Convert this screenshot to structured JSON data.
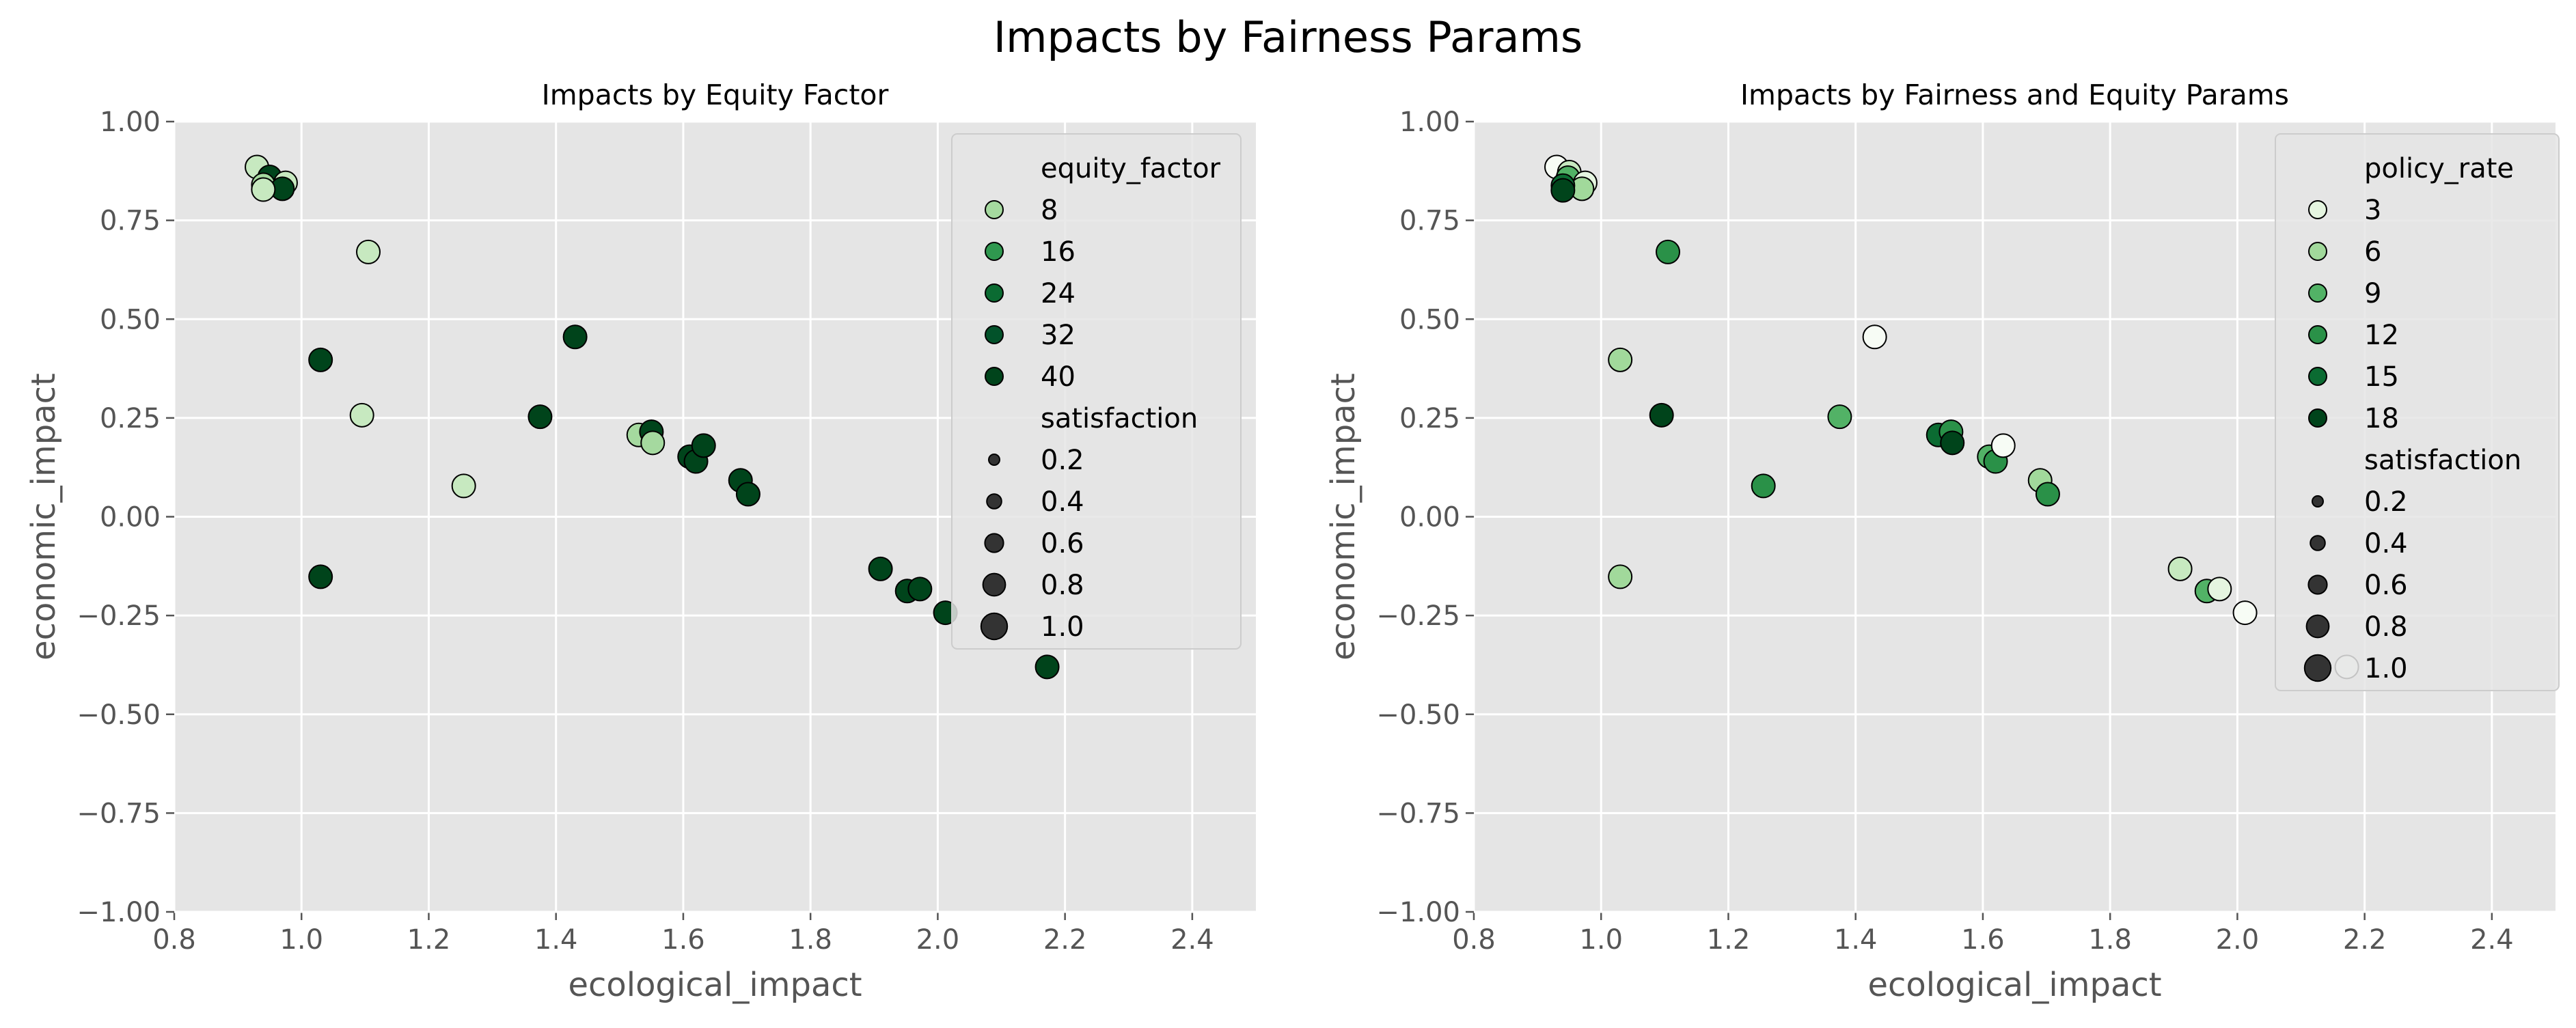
{
  "figure": {
    "suptitle": "Impacts by Fairness Params"
  },
  "chart_data": [
    {
      "type": "scatter",
      "title": "Impacts by Equity Factor",
      "xlabel": "ecological_impact",
      "ylabel": "economic_impact",
      "xlim": [
        0.8,
        2.5
      ],
      "ylim": [
        -1.0,
        1.0
      ],
      "xticks": [
        "0.8",
        "1.0",
        "1.2",
        "1.4",
        "1.6",
        "1.8",
        "2.0",
        "2.2",
        "2.4"
      ],
      "yticks": [
        "−1.00",
        "−0.75",
        "−0.50",
        "−0.25",
        "0.00",
        "0.25",
        "0.50",
        "0.75",
        "1.00"
      ],
      "grid": true,
      "legend_placement": "upper right",
      "hue_title": "equity_factor",
      "hue_entries": [
        {
          "label": "8",
          "color": "#a5d99f"
        },
        {
          "label": "16",
          "color": "#2f984f"
        },
        {
          "label": "24",
          "color": "#0b6b32"
        },
        {
          "label": "32",
          "color": "#02522a"
        },
        {
          "label": "40",
          "color": "#00441b"
        }
      ],
      "size_title": "satisfaction",
      "size_entries": [
        "0.2",
        "0.4",
        "0.6",
        "0.8",
        "1.0"
      ],
      "points": [
        {
          "x": 0.93,
          "y": 0.885,
          "color": "#c7e9c0"
        },
        {
          "x": 0.95,
          "y": 0.86,
          "color": "#00441b"
        },
        {
          "x": 0.94,
          "y": 0.84,
          "color": "#a5d99f"
        },
        {
          "x": 0.975,
          "y": 0.845,
          "color": "#c7e9c0"
        },
        {
          "x": 0.97,
          "y": 0.83,
          "color": "#00441b"
        },
        {
          "x": 0.94,
          "y": 0.828,
          "color": "#c7e9c0"
        },
        {
          "x": 1.105,
          "y": 0.67,
          "color": "#c7e9c0"
        },
        {
          "x": 1.03,
          "y": 0.397,
          "color": "#00441b"
        },
        {
          "x": 1.43,
          "y": 0.455,
          "color": "#00441b"
        },
        {
          "x": 1.095,
          "y": 0.257,
          "color": "#c7e9c0"
        },
        {
          "x": 1.375,
          "y": 0.253,
          "color": "#00441b"
        },
        {
          "x": 1.255,
          "y": 0.078,
          "color": "#c7e9c0"
        },
        {
          "x": 1.53,
          "y": 0.207,
          "color": "#a5d99f"
        },
        {
          "x": 1.55,
          "y": 0.215,
          "color": "#00441b"
        },
        {
          "x": 1.552,
          "y": 0.187,
          "color": "#a5d99f"
        },
        {
          "x": 1.61,
          "y": 0.152,
          "color": "#00441b"
        },
        {
          "x": 1.62,
          "y": 0.14,
          "color": "#00441b"
        },
        {
          "x": 1.632,
          "y": 0.18,
          "color": "#00441b"
        },
        {
          "x": 1.69,
          "y": 0.092,
          "color": "#00441b"
        },
        {
          "x": 1.702,
          "y": 0.057,
          "color": "#00441b"
        },
        {
          "x": 1.03,
          "y": -0.152,
          "color": "#00441b"
        },
        {
          "x": 1.91,
          "y": -0.132,
          "color": "#00441b"
        },
        {
          "x": 1.952,
          "y": -0.188,
          "color": "#00441b"
        },
        {
          "x": 1.972,
          "y": -0.183,
          "color": "#00441b"
        },
        {
          "x": 2.012,
          "y": -0.243,
          "color": "#00441b"
        },
        {
          "x": 2.172,
          "y": -0.38,
          "color": "#00441b"
        }
      ]
    },
    {
      "type": "scatter",
      "title": "Impacts by Fairness and Equity Params",
      "xlabel": "ecological_impact",
      "ylabel": "economic_impact",
      "xlim": [
        0.8,
        2.5
      ],
      "ylim": [
        -1.0,
        1.0
      ],
      "xticks": [
        "0.8",
        "1.0",
        "1.2",
        "1.4",
        "1.6",
        "1.8",
        "2.0",
        "2.2",
        "2.4"
      ],
      "yticks": [
        "−1.00",
        "−0.75",
        "−0.50",
        "−0.25",
        "0.00",
        "0.25",
        "0.50",
        "0.75",
        "1.00"
      ],
      "grid": true,
      "legend_placement": "upper right",
      "hue_title": "policy_rate",
      "hue_entries": [
        {
          "label": "3",
          "color": "#e5f5e0"
        },
        {
          "label": "6",
          "color": "#a1d99b"
        },
        {
          "label": "9",
          "color": "#52b266"
        },
        {
          "label": "12",
          "color": "#2a9148"
        },
        {
          "label": "15",
          "color": "#0b6b32"
        },
        {
          "label": "18",
          "color": "#00441b"
        }
      ],
      "size_title": "satisfaction",
      "size_entries": [
        "0.2",
        "0.4",
        "0.6",
        "0.8",
        "1.0"
      ],
      "points": [
        {
          "x": 0.93,
          "y": 0.885,
          "color": "#f7fcf5"
        },
        {
          "x": 0.95,
          "y": 0.872,
          "color": "#c7e9c0"
        },
        {
          "x": 0.948,
          "y": 0.858,
          "color": "#52b266"
        },
        {
          "x": 0.975,
          "y": 0.845,
          "color": "#e5f5e0"
        },
        {
          "x": 0.97,
          "y": 0.83,
          "color": "#a1d99b"
        },
        {
          "x": 0.94,
          "y": 0.838,
          "color": "#0b6b32"
        },
        {
          "x": 0.94,
          "y": 0.826,
          "color": "#00441b"
        },
        {
          "x": 1.105,
          "y": 0.67,
          "color": "#2a9148"
        },
        {
          "x": 1.43,
          "y": 0.455,
          "color": "#f7fcf5"
        },
        {
          "x": 1.03,
          "y": 0.397,
          "color": "#a1d99b"
        },
        {
          "x": 1.095,
          "y": 0.257,
          "color": "#00441b"
        },
        {
          "x": 1.375,
          "y": 0.253,
          "color": "#52b266"
        },
        {
          "x": 1.255,
          "y": 0.078,
          "color": "#2a9148"
        },
        {
          "x": 1.53,
          "y": 0.207,
          "color": "#0b6b32"
        },
        {
          "x": 1.55,
          "y": 0.215,
          "color": "#2a9148"
        },
        {
          "x": 1.552,
          "y": 0.187,
          "color": "#00441b"
        },
        {
          "x": 1.61,
          "y": 0.152,
          "color": "#52b266"
        },
        {
          "x": 1.62,
          "y": 0.14,
          "color": "#2a9148"
        },
        {
          "x": 1.632,
          "y": 0.18,
          "color": "#f7fcf5"
        },
        {
          "x": 1.69,
          "y": 0.092,
          "color": "#a1d99b"
        },
        {
          "x": 1.702,
          "y": 0.057,
          "color": "#2a9148"
        },
        {
          "x": 1.03,
          "y": -0.152,
          "color": "#a1d99b"
        },
        {
          "x": 1.91,
          "y": -0.132,
          "color": "#c7e9c0"
        },
        {
          "x": 1.952,
          "y": -0.188,
          "color": "#52b266"
        },
        {
          "x": 1.972,
          "y": -0.183,
          "color": "#e5f5e0"
        },
        {
          "x": 2.012,
          "y": -0.243,
          "color": "#f7fcf5"
        },
        {
          "x": 2.172,
          "y": -0.38,
          "color": "#f7fcf5"
        }
      ]
    }
  ]
}
